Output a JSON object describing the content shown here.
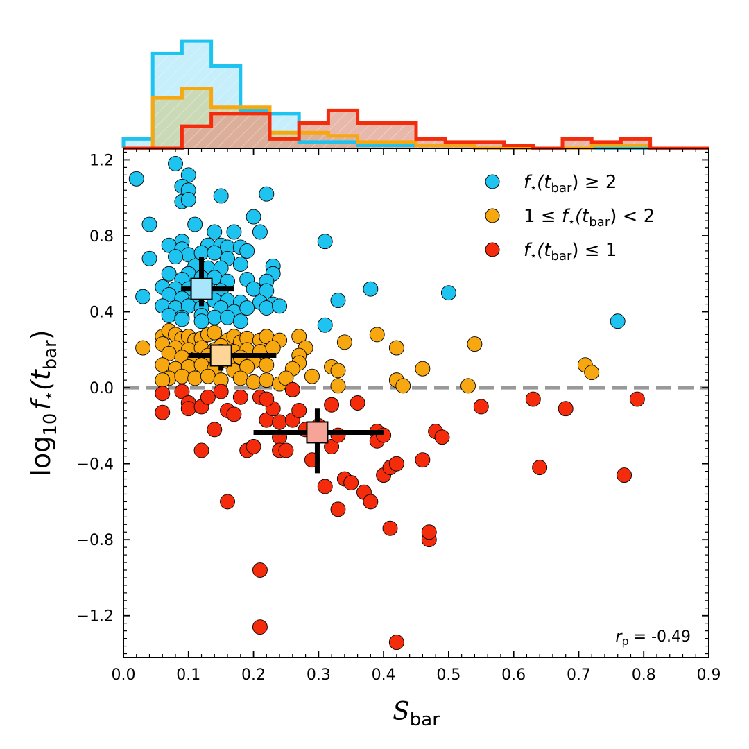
{
  "chart_data": {
    "type": "scatter",
    "xlabel_main": "S",
    "xlabel_sub": "bar",
    "ylabel_main": "log",
    "ylabel_base": "10",
    "ylabel_f": "f",
    "ylabel_star": "⋆",
    "ylabel_open": "(t",
    "ylabel_sub": "bar",
    "ylabel_close": ")",
    "xlim": [
      0.0,
      0.9
    ],
    "ylim": [
      -1.42,
      1.26
    ],
    "xticks": [
      0.0,
      0.1,
      0.2,
      0.3,
      0.4,
      0.5,
      0.6,
      0.7,
      0.8,
      0.9
    ],
    "xtick_labels": [
      "0.0",
      "0.1",
      "0.2",
      "0.3",
      "0.4",
      "0.5",
      "0.6",
      "0.7",
      "0.8",
      "0.9"
    ],
    "yticks": [
      -1.2,
      -0.8,
      -0.4,
      0.0,
      0.4,
      0.8,
      1.2
    ],
    "ytick_labels": [
      "−1.2",
      "−0.8",
      "−0.4",
      "0.0",
      "0.4",
      "0.8",
      "1.2"
    ],
    "reference_line": 0.0,
    "legend": {
      "placement": "top-right",
      "entries": [
        {
          "f": "f",
          "star": "⋆",
          "open": "(t",
          "sub": "bar",
          "close": ")",
          "prefix": "",
          "suffix": " ≥ 2"
        },
        {
          "f": "f",
          "star": "⋆",
          "open": "(t",
          "sub": "bar",
          "close": ")",
          "prefix": "1 ≤ ",
          "suffix": " < 2"
        },
        {
          "f": "f",
          "star": "⋆",
          "open": "(t",
          "sub": "bar",
          "close": ")",
          "prefix": "",
          "suffix": " ≤ 1"
        }
      ]
    },
    "stat": {
      "symbol": "r",
      "sub": "p",
      "value": " = -0.49"
    },
    "series": [
      {
        "key": "high",
        "color": "#1ec3f0",
        "median_color": "#a8e6fb",
        "points": [
          [
            0.02,
            1.1
          ],
          [
            0.08,
            1.18
          ],
          [
            0.1,
            1.12
          ],
          [
            0.15,
            1.01
          ],
          [
            0.22,
            1.02
          ],
          [
            0.09,
            1.06
          ],
          [
            0.1,
            1.04
          ],
          [
            0.09,
            0.98
          ],
          [
            0.1,
            0.99
          ],
          [
            0.04,
            0.86
          ],
          [
            0.11,
            0.86
          ],
          [
            0.2,
            0.9
          ],
          [
            0.21,
            0.82
          ],
          [
            0.14,
            0.82
          ],
          [
            0.17,
            0.82
          ],
          [
            0.09,
            0.77
          ],
          [
            0.13,
            0.75
          ],
          [
            0.15,
            0.75
          ],
          [
            0.16,
            0.74
          ],
          [
            0.18,
            0.74
          ],
          [
            0.07,
            0.75
          ],
          [
            0.09,
            0.73
          ],
          [
            0.1,
            0.7
          ],
          [
            0.12,
            0.71
          ],
          [
            0.14,
            0.71
          ],
          [
            0.08,
            0.69
          ],
          [
            0.04,
            0.68
          ],
          [
            0.16,
            0.68
          ],
          [
            0.18,
            0.65
          ],
          [
            0.19,
            0.72
          ],
          [
            0.23,
            0.64
          ],
          [
            0.23,
            0.6
          ],
          [
            0.11,
            0.64
          ],
          [
            0.13,
            0.63
          ],
          [
            0.15,
            0.63
          ],
          [
            0.07,
            0.6
          ],
          [
            0.1,
            0.6
          ],
          [
            0.09,
            0.57
          ],
          [
            0.12,
            0.58
          ],
          [
            0.14,
            0.58
          ],
          [
            0.16,
            0.56
          ],
          [
            0.19,
            0.57
          ],
          [
            0.22,
            0.56
          ],
          [
            0.06,
            0.53
          ],
          [
            0.08,
            0.52
          ],
          [
            0.1,
            0.52
          ],
          [
            0.13,
            0.52
          ],
          [
            0.15,
            0.51
          ],
          [
            0.2,
            0.52
          ],
          [
            0.22,
            0.51
          ],
          [
            0.03,
            0.48
          ],
          [
            0.07,
            0.49
          ],
          [
            0.09,
            0.47
          ],
          [
            0.11,
            0.46
          ],
          [
            0.14,
            0.46
          ],
          [
            0.16,
            0.46
          ],
          [
            0.18,
            0.45
          ],
          [
            0.21,
            0.45
          ],
          [
            0.23,
            0.44
          ],
          [
            0.06,
            0.43
          ],
          [
            0.08,
            0.42
          ],
          [
            0.1,
            0.43
          ],
          [
            0.12,
            0.42
          ],
          [
            0.15,
            0.42
          ],
          [
            0.17,
            0.4
          ],
          [
            0.19,
            0.42
          ],
          [
            0.22,
            0.42
          ],
          [
            0.24,
            0.43
          ],
          [
            0.07,
            0.38
          ],
          [
            0.09,
            0.37
          ],
          [
            0.12,
            0.38
          ],
          [
            0.14,
            0.37
          ],
          [
            0.16,
            0.37
          ],
          [
            0.18,
            0.35
          ],
          [
            0.12,
            0.35
          ],
          [
            0.09,
            0.36
          ],
          [
            0.31,
            0.77
          ],
          [
            0.38,
            0.52
          ],
          [
            0.5,
            0.5
          ],
          [
            0.33,
            0.46
          ],
          [
            0.31,
            0.33
          ],
          [
            0.76,
            0.35
          ]
        ]
      },
      {
        "key": "mid",
        "color": "#f7a70f",
        "median_color": "#fed597",
        "points": [
          [
            0.03,
            0.21
          ],
          [
            0.06,
            0.27
          ],
          [
            0.07,
            0.3
          ],
          [
            0.08,
            0.28
          ],
          [
            0.09,
            0.26
          ],
          [
            0.1,
            0.27
          ],
          [
            0.11,
            0.25
          ],
          [
            0.12,
            0.26
          ],
          [
            0.13,
            0.28
          ],
          [
            0.14,
            0.29
          ],
          [
            0.16,
            0.25
          ],
          [
            0.17,
            0.27
          ],
          [
            0.18,
            0.24
          ],
          [
            0.19,
            0.26
          ],
          [
            0.21,
            0.25
          ],
          [
            0.22,
            0.27
          ],
          [
            0.24,
            0.25
          ],
          [
            0.06,
            0.23
          ],
          [
            0.08,
            0.21
          ],
          [
            0.1,
            0.2
          ],
          [
            0.12,
            0.21
          ],
          [
            0.14,
            0.2
          ],
          [
            0.15,
            0.22
          ],
          [
            0.17,
            0.19
          ],
          [
            0.19,
            0.2
          ],
          [
            0.21,
            0.19
          ],
          [
            0.23,
            0.21
          ],
          [
            0.07,
            0.18
          ],
          [
            0.09,
            0.16
          ],
          [
            0.11,
            0.15
          ],
          [
            0.13,
            0.17
          ],
          [
            0.16,
            0.14
          ],
          [
            0.18,
            0.16
          ],
          [
            0.2,
            0.14
          ],
          [
            0.06,
            0.12
          ],
          [
            0.08,
            0.1
          ],
          [
            0.1,
            0.11
          ],
          [
            0.12,
            0.12
          ],
          [
            0.14,
            0.1
          ],
          [
            0.17,
            0.09
          ],
          [
            0.19,
            0.11
          ],
          [
            0.22,
            0.12
          ],
          [
            0.07,
            0.05
          ],
          [
            0.09,
            0.06
          ],
          [
            0.11,
            0.05
          ],
          [
            0.13,
            0.06
          ],
          [
            0.15,
            0.04
          ],
          [
            0.18,
            0.05
          ],
          [
            0.2,
            0.03
          ],
          [
            0.22,
            0.04
          ],
          [
            0.24,
            0.02
          ],
          [
            0.06,
            0.04
          ],
          [
            0.27,
            0.27
          ],
          [
            0.28,
            0.21
          ],
          [
            0.27,
            0.17
          ],
          [
            0.27,
            0.13
          ],
          [
            0.26,
            0.1
          ],
          [
            0.29,
            0.06
          ],
          [
            0.32,
            0.11
          ],
          [
            0.33,
            0.09
          ],
          [
            0.34,
            0.24
          ],
          [
            0.39,
            0.28
          ],
          [
            0.42,
            0.21
          ],
          [
            0.42,
            0.04
          ],
          [
            0.43,
            0.01
          ],
          [
            0.33,
            0.01
          ],
          [
            0.46,
            0.1
          ],
          [
            0.54,
            0.23
          ],
          [
            0.53,
            0.01
          ],
          [
            0.71,
            0.12
          ],
          [
            0.72,
            0.08
          ],
          [
            0.25,
            0.05
          ]
        ]
      },
      {
        "key": "low",
        "color": "#f42c0c",
        "median_color": "#f6a398",
        "points": [
          [
            0.06,
            -0.03
          ],
          [
            0.06,
            -0.13
          ],
          [
            0.09,
            -0.02
          ],
          [
            0.1,
            -0.08
          ],
          [
            0.1,
            -0.11
          ],
          [
            0.12,
            -0.1
          ],
          [
            0.12,
            -0.33
          ],
          [
            0.13,
            -0.05
          ],
          [
            0.14,
            -0.22
          ],
          [
            0.15,
            -0.02
          ],
          [
            0.16,
            -0.12
          ],
          [
            0.16,
            -0.6
          ],
          [
            0.17,
            -0.14
          ],
          [
            0.18,
            -0.05
          ],
          [
            0.19,
            -0.33
          ],
          [
            0.21,
            -0.05
          ],
          [
            0.2,
            -0.31
          ],
          [
            0.21,
            -0.96
          ],
          [
            0.21,
            -1.26
          ],
          [
            0.22,
            -0.17
          ],
          [
            0.23,
            -0.11
          ],
          [
            0.24,
            -0.18
          ],
          [
            0.24,
            -0.26
          ],
          [
            0.24,
            -0.33
          ],
          [
            0.25,
            -0.33
          ],
          [
            0.26,
            -0.01
          ],
          [
            0.26,
            -0.17
          ],
          [
            0.27,
            -0.12
          ],
          [
            0.28,
            -0.22
          ],
          [
            0.29,
            -0.38
          ],
          [
            0.3,
            -0.2
          ],
          [
            0.31,
            -0.52
          ],
          [
            0.32,
            -0.09
          ],
          [
            0.32,
            -0.31
          ],
          [
            0.33,
            -0.25
          ],
          [
            0.33,
            -0.64
          ],
          [
            0.34,
            -0.48
          ],
          [
            0.35,
            -0.5
          ],
          [
            0.36,
            -0.08
          ],
          [
            0.37,
            -0.55
          ],
          [
            0.38,
            -0.6
          ],
          [
            0.39,
            -0.23
          ],
          [
            0.39,
            -0.28
          ],
          [
            0.4,
            -0.25
          ],
          [
            0.4,
            -0.46
          ],
          [
            0.41,
            -0.74
          ],
          [
            0.41,
            -0.42
          ],
          [
            0.42,
            -0.4
          ],
          [
            0.42,
            -1.34
          ],
          [
            0.46,
            -0.38
          ],
          [
            0.47,
            -0.8
          ],
          [
            0.47,
            -0.76
          ],
          [
            0.48,
            -0.23
          ],
          [
            0.49,
            -0.26
          ],
          [
            0.55,
            -0.1
          ],
          [
            0.63,
            -0.06
          ],
          [
            0.64,
            -0.42
          ],
          [
            0.68,
            -0.11
          ],
          [
            0.77,
            -0.46
          ],
          [
            0.79,
            -0.06
          ],
          [
            0.22,
            -0.06
          ],
          [
            0.26,
            -0.01
          ]
        ]
      }
    ],
    "medians": [
      {
        "series": "high",
        "x": 0.12,
        "y": 0.52,
        "x_lo": 0.09,
        "x_hi": 0.17,
        "y_lo": 0.43,
        "y_hi": 0.69
      },
      {
        "series": "mid",
        "x": 0.15,
        "y": 0.17,
        "x_lo": 0.1,
        "x_hi": 0.235,
        "y_lo": 0.09,
        "y_hi": 0.23
      },
      {
        "series": "low",
        "x": 0.298,
        "y": -0.235,
        "x_lo": 0.2,
        "x_hi": 0.4,
        "y_lo": -0.45,
        "y_hi": -0.11
      }
    ],
    "histogram": {
      "bin_edges": [
        0.0,
        0.045,
        0.09,
        0.135,
        0.18,
        0.225,
        0.27,
        0.315,
        0.36,
        0.405,
        0.45,
        0.495,
        0.54,
        0.585,
        0.63,
        0.675,
        0.72,
        0.765,
        0.81,
        0.855,
        0.9
      ],
      "ymax": 0.36,
      "series": [
        {
          "key": "high",
          "edge": "#1ec3f0",
          "fill": "#b3e9fa",
          "counts": [
            0.03,
            0.3,
            0.34,
            0.26,
            0.12,
            0.11,
            0.02,
            0.02,
            0.01,
            0.01,
            0.01,
            0.01,
            0.0,
            0.0,
            0.0,
            0.0,
            0.0,
            0.0,
            0.0,
            0.0
          ]
        },
        {
          "key": "mid",
          "edge": "#f7a70f",
          "fill": "#cbd3a0",
          "counts": [
            0.0,
            0.16,
            0.19,
            0.13,
            0.13,
            0.05,
            0.05,
            0.04,
            0.02,
            0.02,
            0.01,
            0.01,
            0.0,
            0.0,
            0.0,
            0.0,
            0.01,
            0.01,
            0.0,
            0.0
          ]
        },
        {
          "key": "low",
          "edge": "#f42c0c",
          "fill": "#e0a08f",
          "counts": [
            0.0,
            0.0,
            0.07,
            0.11,
            0.11,
            0.03,
            0.08,
            0.12,
            0.08,
            0.08,
            0.03,
            0.02,
            0.02,
            0.01,
            0.0,
            0.03,
            0.02,
            0.03,
            0.0,
            0.0
          ]
        }
      ]
    }
  }
}
